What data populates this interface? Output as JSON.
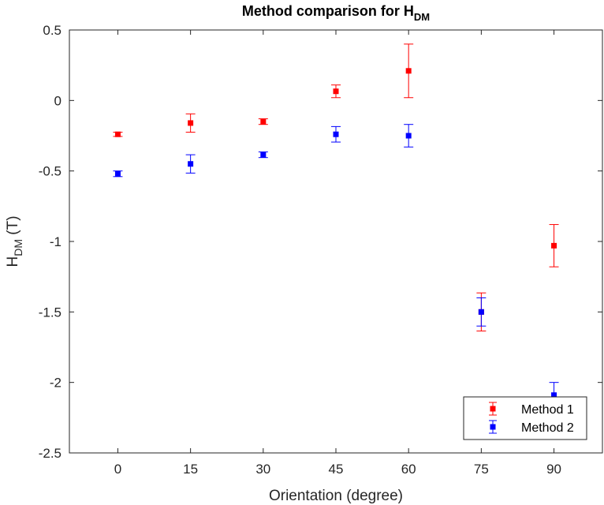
{
  "chart_data": {
    "type": "scatter",
    "title": "Method comparison for H",
    "title_sub": "DM",
    "xlabel": "Orientation (degree)",
    "ylabel": "H",
    "ylabel_sub": "DM",
    "ylabel_suffix": " (T)",
    "x_ticks": [
      0,
      15,
      30,
      45,
      60,
      75,
      90
    ],
    "x_tick_labels": [
      "0",
      "15",
      "30",
      "45",
      "60",
      "75",
      "90"
    ],
    "y_ticks": [
      0.5,
      0,
      -0.5,
      -1,
      -1.5,
      -2,
      -2.5
    ],
    "y_tick_labels": [
      "0.5",
      "0",
      "-0.5",
      "-1",
      "-1.5",
      "-2",
      "-2.5"
    ],
    "xlim": [
      -10,
      100
    ],
    "ylim": [
      -2.5,
      0.5
    ],
    "grid": false,
    "legend_position": "bottom-right",
    "series": [
      {
        "name": "Method 1",
        "color": "#ff0000",
        "marker": "square",
        "x": [
          0,
          15,
          30,
          45,
          60,
          75,
          90
        ],
        "y": [
          -0.24,
          -0.16,
          -0.15,
          0.065,
          0.21,
          -1.5,
          -1.03
        ],
        "err": [
          0.015,
          0.065,
          0.02,
          0.045,
          0.19,
          0.135,
          0.15
        ]
      },
      {
        "name": "Method 2",
        "color": "#0000ff",
        "marker": "square",
        "x": [
          0,
          15,
          30,
          45,
          60,
          75,
          90
        ],
        "y": [
          -0.52,
          -0.45,
          -0.385,
          -0.24,
          -0.25,
          -1.5,
          -2.09
        ],
        "err": [
          0.02,
          0.065,
          0.02,
          0.055,
          0.08,
          0.1,
          0.09
        ]
      }
    ]
  }
}
